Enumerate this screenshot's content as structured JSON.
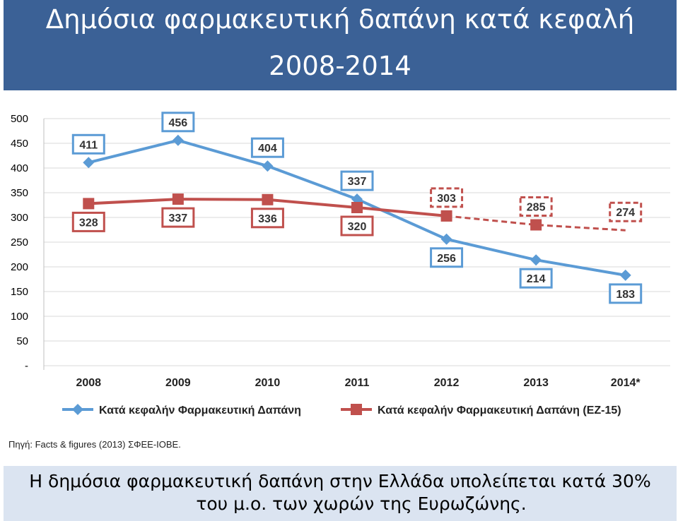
{
  "title": "Δημόσια φαρμακευτική δαπάνη κατά κεφαλή",
  "subtitle": "2008-2014",
  "source": "Πηγή: Facts & figures (2013) ΣΦΕΕ-ΙΟΒΕ.",
  "banner": {
    "line1": "Η δημόσια φαρμακευτική δαπάνη στην Ελλάδα υπολείπεται κατά 30%",
    "line2": "του μ.ο. των χωρών της Ευρωζώνης."
  },
  "colors": {
    "header": "#3b6196",
    "blue": "#5b9bd5",
    "red": "#c0504d",
    "dark_red": "#b22222"
  },
  "chart_data": {
    "type": "line",
    "categories": [
      "2008",
      "2009",
      "2010",
      "2011",
      "2012",
      "2013",
      "2014*"
    ],
    "y_ticks": [
      "500",
      "450",
      "400",
      "350",
      "300",
      "250",
      "200",
      "150",
      "100",
      "50",
      "-"
    ],
    "ylim": [
      0,
      500
    ],
    "grid": true,
    "legend_position": "bottom",
    "series": [
      {
        "name": "Κατά κεφαλήν Φαρμακευτική Δαπάνη",
        "values": [
          411,
          456,
          404,
          337,
          256,
          214,
          183
        ],
        "labels": [
          "411",
          "456",
          "404",
          "337",
          "256",
          "214",
          "183"
        ],
        "label_side": [
          "above",
          "above",
          "above",
          "above",
          "below",
          "below",
          "below"
        ],
        "color": "#5b9bd5",
        "marker": "diamond"
      },
      {
        "name": "Κατά κεφαλήν Φαρμακευτική Δαπάνη (ΕΖ-15)",
        "values": [
          328,
          337,
          336,
          320,
          303,
          285,
          274
        ],
        "labels": [
          "328",
          "337",
          "336",
          "320",
          "303",
          "285",
          "274"
        ],
        "label_side": [
          "below",
          "below",
          "below",
          "below",
          "above",
          "above",
          "above"
        ],
        "estimated_from_index": 4,
        "color": "#c0504d",
        "marker": "square"
      }
    ]
  }
}
